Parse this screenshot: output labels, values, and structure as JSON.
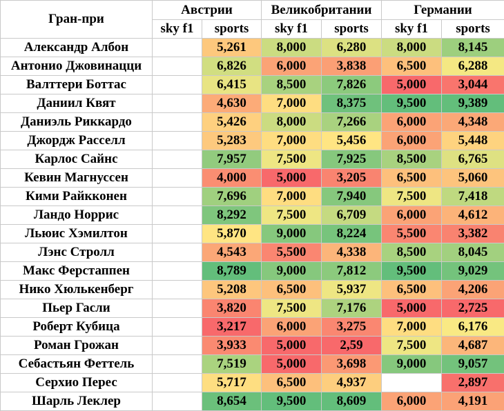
{
  "table": {
    "corner_label": "Гран-при",
    "races": [
      "Австрии",
      "Великобритании",
      "Германии"
    ],
    "subheaders": [
      "sky f1",
      "sports",
      "sky f1",
      "sports",
      "sky f1",
      "sports"
    ],
    "rows": [
      {
        "driver": "Александр Албон",
        "values": [
          "",
          "5,261",
          "8,000",
          "6,280",
          "8,000",
          "8,145"
        ]
      },
      {
        "driver": "Антонио Джовинацци",
        "values": [
          "",
          "6,826",
          "6,000",
          "3,838",
          "6,500",
          "6,288"
        ]
      },
      {
        "driver": "Валттери Боттас",
        "values": [
          "",
          "6,415",
          "8,500",
          "7,826",
          "5,000",
          "3,044"
        ]
      },
      {
        "driver": "Даниил Квят",
        "values": [
          "",
          "4,630",
          "7,000",
          "8,375",
          "9,500",
          "9,389"
        ]
      },
      {
        "driver": "Даниэль Риккардо",
        "values": [
          "",
          "5,426",
          "8,000",
          "7,266",
          "6,000",
          "4,348"
        ]
      },
      {
        "driver": "Джордж Расселл",
        "values": [
          "",
          "5,283",
          "7,000",
          "5,456",
          "6,000",
          "5,448"
        ]
      },
      {
        "driver": "Карлос Сайнс",
        "values": [
          "",
          "7,957",
          "7,500",
          "7,925",
          "8,500",
          "6,765"
        ]
      },
      {
        "driver": "Кевин Магнуссен",
        "values": [
          "",
          "4,000",
          "5,000",
          "3,205",
          "6,500",
          "5,060"
        ]
      },
      {
        "driver": "Кими Райкконен",
        "values": [
          "",
          "7,696",
          "7,000",
          "7,940",
          "7,500",
          "7,418"
        ]
      },
      {
        "driver": "Ландо Норрис",
        "values": [
          "",
          "8,292",
          "7,500",
          "6,709",
          "6,000",
          "4,612"
        ]
      },
      {
        "driver": "Льюис Хэмилтон",
        "values": [
          "",
          "5,870",
          "9,000",
          "8,224",
          "5,500",
          "3,382"
        ]
      },
      {
        "driver": "Лэнс Стролл",
        "values": [
          "",
          "4,543",
          "5,500",
          "4,338",
          "8,500",
          "8,045"
        ]
      },
      {
        "driver": "Макс Ферстаппен",
        "values": [
          "",
          "8,789",
          "9,000",
          "7,812",
          "9,500",
          "9,029"
        ]
      },
      {
        "driver": "Нико Хюлькенберг",
        "values": [
          "",
          "5,208",
          "6,500",
          "5,937",
          "6,500",
          "4,206"
        ]
      },
      {
        "driver": "Пьер Гасли",
        "values": [
          "",
          "3,820",
          "7,500",
          "7,176",
          "5,000",
          "2,725"
        ]
      },
      {
        "driver": "Роберт Кубица",
        "values": [
          "",
          "3,217",
          "6,000",
          "3,275",
          "7,000",
          "6,176"
        ]
      },
      {
        "driver": "Роман Грожан",
        "values": [
          "",
          "3,933",
          "5,000",
          "2,59",
          "7,500",
          "4,687"
        ]
      },
      {
        "driver": "Себастьян Феттель",
        "values": [
          "",
          "7,519",
          "5,000",
          "3,698",
          "9,000",
          "9,057"
        ]
      },
      {
        "driver": "Серхио Перес",
        "values": [
          "",
          "5,717",
          "6,500",
          "4,937",
          "",
          "2,897"
        ]
      },
      {
        "driver": "Шарль Леклер",
        "values": [
          "",
          "8,654",
          "9,500",
          "8,609",
          "6,000",
          "4,191"
        ]
      }
    ]
  },
  "colors": {
    "scale_low": "#f8696b",
    "scale_mid": "#ffeb84",
    "scale_high": "#63be7b",
    "grid": "#c9c9c9"
  }
}
